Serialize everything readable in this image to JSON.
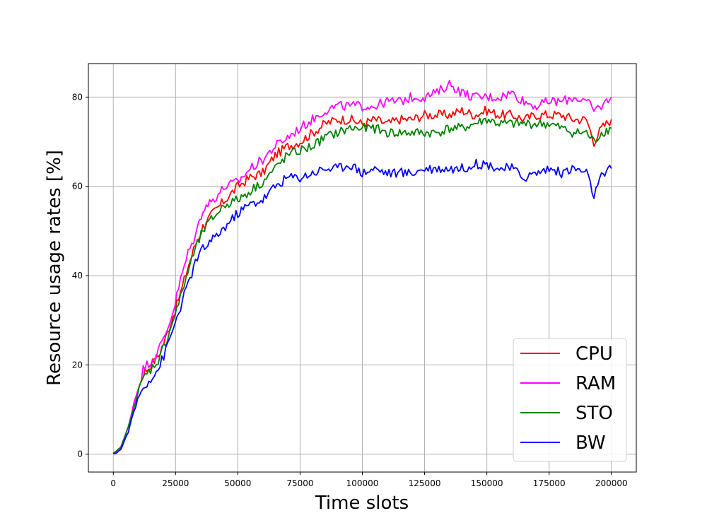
{
  "chart_data": {
    "type": "line",
    "title": "",
    "xlabel": "Time slots",
    "ylabel": "Resource usage rates [%]",
    "xlim": [
      -10000,
      210000
    ],
    "ylim": [
      -4,
      87.5
    ],
    "xticks": [
      0,
      25000,
      50000,
      75000,
      100000,
      125000,
      150000,
      175000,
      200000
    ],
    "yticks": [
      0,
      20,
      40,
      60,
      80
    ],
    "grid": true,
    "legend_position": "bottom-right",
    "x": [
      0,
      3000,
      6000,
      9000,
      12000,
      15000,
      18000,
      21000,
      24000,
      27000,
      30000,
      33000,
      36000,
      40000,
      45000,
      50000,
      55000,
      60000,
      65000,
      70000,
      75000,
      80000,
      85000,
      90000,
      95000,
      100000,
      105000,
      110000,
      115000,
      120000,
      125000,
      130000,
      135000,
      140000,
      145000,
      150000,
      155000,
      160000,
      165000,
      170000,
      175000,
      180000,
      185000,
      190000,
      193000,
      196000,
      200000
    ],
    "series": [
      {
        "name": "CPU",
        "color": "#ff0000",
        "values": [
          0,
          1.5,
          6,
          13,
          18,
          20,
          22,
          26,
          31,
          36,
          42,
          47,
          51,
          54,
          57,
          60,
          62,
          63,
          67,
          69,
          70,
          72,
          74,
          75,
          75,
          74,
          75,
          74,
          75,
          75,
          76,
          76,
          76,
          77,
          76,
          77,
          76,
          76,
          75,
          76,
          76,
          76,
          75,
          75,
          70,
          73,
          75
        ]
      },
      {
        "name": "RAM",
        "color": "#ff00ff",
        "values": [
          0,
          1.5,
          6,
          13,
          19,
          21,
          23,
          27,
          32,
          39,
          45,
          49,
          55,
          57,
          60,
          61,
          64,
          66,
          69,
          71,
          73,
          75,
          77,
          78,
          78,
          78,
          78,
          79,
          79,
          80,
          80,
          81,
          83,
          81,
          80,
          80,
          80,
          81,
          79,
          78,
          79,
          79,
          80,
          79,
          77,
          78,
          80
        ]
      },
      {
        "name": "STO",
        "color": "#008000",
        "values": [
          0,
          1.5,
          6,
          12,
          17,
          19,
          21,
          25,
          30,
          35,
          41,
          46,
          50,
          53,
          56,
          57,
          59,
          61,
          64,
          67,
          68,
          69,
          71,
          72,
          73,
          73,
          73,
          72,
          72,
          72,
          72,
          72,
          73,
          73,
          74,
          75,
          74,
          74,
          74,
          74,
          74,
          73,
          72,
          72,
          70,
          72,
          73
        ]
      },
      {
        "name": "BW",
        "color": "#0000ff",
        "values": [
          0,
          1,
          5,
          11,
          15,
          17,
          19,
          23,
          28,
          33,
          38,
          43,
          46,
          48,
          51,
          54,
          56,
          57,
          60,
          62,
          62,
          63,
          64,
          64,
          65,
          63,
          64,
          63,
          63,
          63,
          64,
          64,
          64,
          64,
          65,
          65,
          64,
          64,
          62,
          63,
          64,
          63,
          64,
          63,
          58,
          62,
          64
        ]
      }
    ]
  }
}
